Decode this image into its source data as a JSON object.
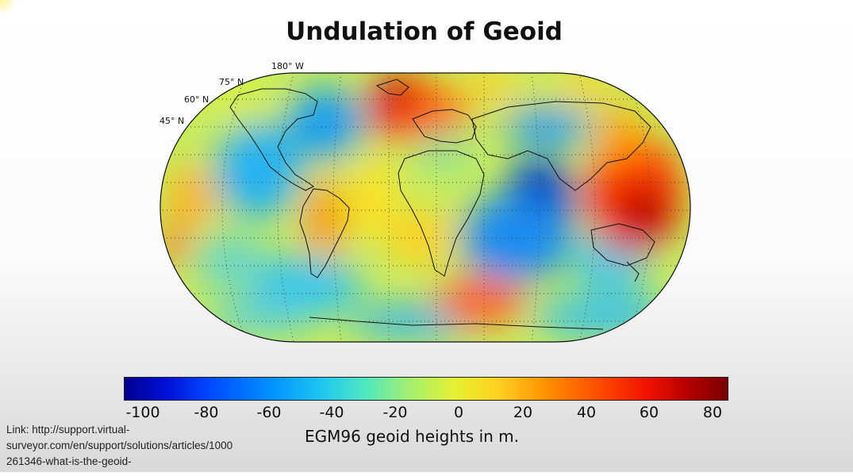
{
  "title": "Undulation of Geoid",
  "map": {
    "projection_lon_label": "180° W",
    "lat_labels": [
      "75° N",
      "60° N",
      "45° N"
    ]
  },
  "colorbar": {
    "ticks": [
      "-100",
      "-80",
      "-60",
      "-40",
      "-20",
      "0",
      "20",
      "40",
      "60",
      "80"
    ],
    "label": "EGM96 geoid heights in m.",
    "min": -107,
    "max": 85,
    "colors": [
      "#00008f",
      "#0048ff",
      "#20c8f0",
      "#a0f070",
      "#e8f030",
      "#ff9000",
      "#f01000",
      "#7a0000"
    ]
  },
  "link_lines": [
    "Link: http://support.virtual-",
    "surveyor.com/en/support/solutions/articles/1000",
    "261346-what-is-the-geoid-"
  ]
}
